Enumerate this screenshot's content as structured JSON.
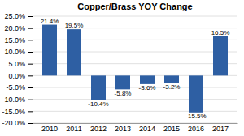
{
  "chart_data": {
    "type": "bar",
    "title": "Copper/Brass YOY Change",
    "categories": [
      "2010",
      "2011",
      "2012",
      "2013",
      "2014",
      "2015",
      "2016",
      "2017"
    ],
    "values": [
      21.4,
      19.5,
      -10.4,
      -5.8,
      -3.6,
      -3.2,
      -15.5,
      16.5
    ],
    "value_labels": [
      "21.4%",
      "19.5%",
      "-10.4%",
      "-5.8%",
      "-3.6%",
      "-3.2%",
      "-15.5%",
      "16.5%"
    ],
    "color": "#2E5FA3",
    "ylim": [
      -20.0,
      25.0
    ],
    "yticks": [
      {
        "value": -20.0,
        "label": "-20.0%"
      },
      {
        "value": -15.0,
        "label": "-15.0%"
      },
      {
        "value": -10.0,
        "label": "-10.0%"
      },
      {
        "value": -5.0,
        "label": "-5.0%"
      },
      {
        "value": 0.0,
        "label": "0.0%"
      },
      {
        "value": 5.0,
        "label": "5.0%"
      },
      {
        "value": 10.0,
        "label": "10.0%"
      },
      {
        "value": 15.0,
        "label": "15.0%"
      },
      {
        "value": 20.0,
        "label": "20.0%"
      },
      {
        "value": 25.0,
        "label": "25.0%"
      }
    ],
    "grid": true,
    "data_labels": true
  }
}
